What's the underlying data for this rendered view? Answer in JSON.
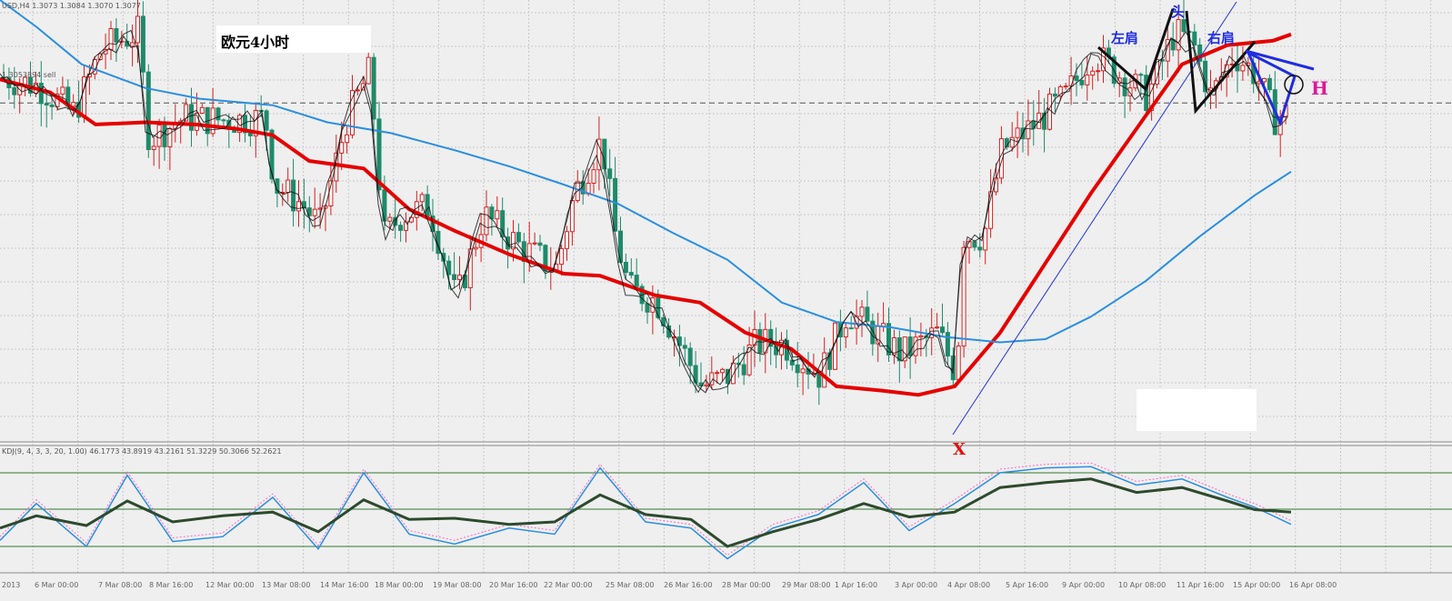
{
  "header": {
    "symbol_line": "USD,H4  1.3073 1.3084 1.3070 1.3077",
    "price_tag": "1.3053894 sell"
  },
  "title": "欧元4小时",
  "annotations": {
    "left_shoulder": "左肩",
    "head": "头",
    "right_shoulder": "右肩",
    "point_x": "X",
    "point_h": "H"
  },
  "indicator": {
    "label": "KDJ(9, 4, 3, 3, 20, 1.00) 46.1773 43.8919 43.2161 51.3229 50.3066 52.2621"
  },
  "colors": {
    "bull": "#d42020",
    "bear": "#1e8a6a",
    "ma_red": "#e60000",
    "ma_blue": "#2a8fe0",
    "ma_black": "#111111",
    "annotation_blue": "#1f2de0",
    "annotation_magenta": "#e0179a",
    "indicator_dark": "#2d4a2d",
    "level_line": "#2f7a2f"
  },
  "chart_data": {
    "type": "candlestick",
    "x_ticks": [
      "2013",
      "6 Mar 00:00",
      "7 Mar 08:00",
      "8 Mar 16:00",
      "12 Mar 00:00",
      "13 Mar 08:00",
      "14 Mar 16:00",
      "18 Mar 00:00",
      "19 Mar 08:00",
      "20 Mar 16:00",
      "22 Mar 00:00",
      "25 Mar 08:00",
      "26 Mar 16:00",
      "28 Mar 00:00",
      "29 Mar 08:00",
      "1 Apr 16:00",
      "3 Apr 00:00",
      "4 Apr 08:00",
      "5 Apr 16:00",
      "9 Apr 00:00",
      "10 Apr 08:00",
      "11 Apr 16:00",
      "15 Apr 00:00",
      "16 Apr 08:00"
    ],
    "series": [
      {
        "name": "MA red",
        "values": [
          1.3076,
          1.3062,
          1.3036,
          1.3036,
          1.3034,
          1.3026,
          1.2991,
          1.2985,
          1.2942,
          1.2926,
          1.2892,
          1.2887,
          1.2853,
          1.2773,
          1.2764,
          1.2776,
          1.2779,
          1.2829,
          1.2905,
          1.2991,
          1.3079,
          1.3123,
          1.3104
        ]
      },
      {
        "name": "MA blue",
        "values": [
          1.3149,
          1.3085,
          1.3058,
          1.3052,
          1.3036,
          1.3006,
          1.2982,
          1.2955,
          1.2918,
          1.2886,
          1.2867,
          1.2841,
          1.2809,
          1.2794,
          1.2794,
          1.278,
          1.278,
          1.28,
          1.283,
          1.2873,
          1.2914,
          1.2963
        ]
      }
    ],
    "price_level": 1.3054,
    "indicator_levels": [
      80,
      50,
      20
    ]
  }
}
